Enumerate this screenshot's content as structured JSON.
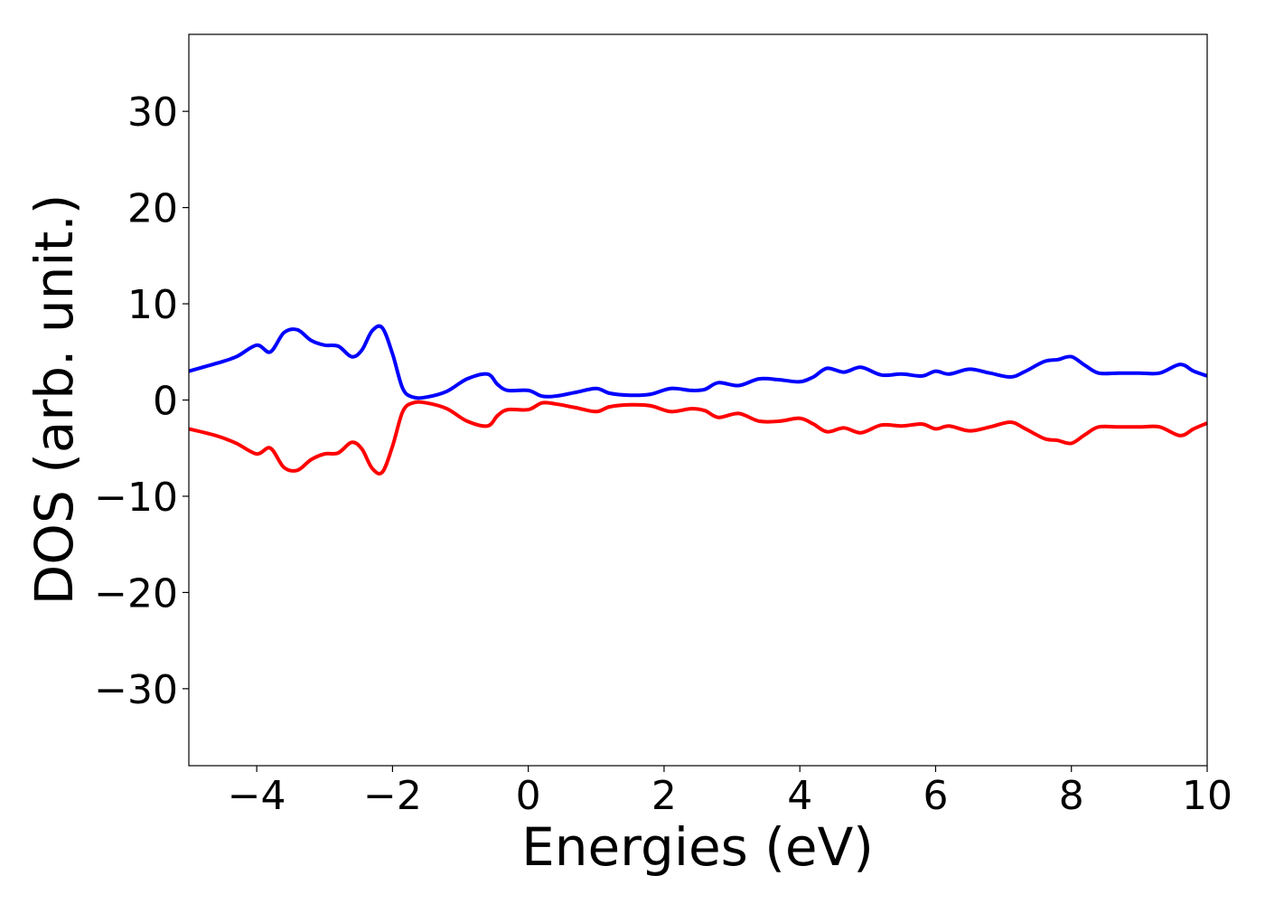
{
  "chart_data": {
    "type": "line",
    "title": "",
    "xlabel": "Energies (eV)",
    "ylabel": "DOS (arb. unit.)",
    "xlim": [
      -5,
      10
    ],
    "ylim": [
      -38,
      38
    ],
    "xticks": [
      -4,
      -2,
      0,
      2,
      4,
      6,
      8,
      10
    ],
    "xtick_labels": [
      "−4",
      "−2",
      "0",
      "2",
      "4",
      "6",
      "8",
      "10"
    ],
    "yticks": [
      30,
      20,
      10,
      0,
      -10,
      -20,
      -30
    ],
    "ytick_labels": [
      "30",
      "20",
      "10",
      "0",
      "−10",
      "−20",
      "−30"
    ],
    "grid": false,
    "legend": "none",
    "series": [
      {
        "color": "#0000ff",
        "x": [
          -5,
          -4.6,
          -4.3,
          -4.0,
          -3.8,
          -3.6,
          -3.4,
          -3.2,
          -3.0,
          -2.8,
          -2.6,
          -2.45,
          -2.3,
          -2.15,
          -2.0,
          -1.85,
          -1.7,
          -1.5,
          -1.2,
          -0.9,
          -0.6,
          -0.45,
          -0.3,
          0.0,
          0.2,
          0.4,
          0.7,
          1.0,
          1.2,
          1.5,
          1.8,
          2.1,
          2.4,
          2.6,
          2.8,
          3.1,
          3.4,
          3.7,
          4.0,
          4.2,
          4.4,
          4.65,
          4.9,
          5.2,
          5.5,
          5.8,
          6.0,
          6.2,
          6.5,
          6.8,
          7.1,
          7.3,
          7.6,
          7.8,
          8.0,
          8.2,
          8.4,
          8.7,
          9.0,
          9.3,
          9.6,
          9.8,
          10.0
        ],
        "values": [
          3.0,
          3.8,
          4.5,
          5.7,
          5.0,
          7.0,
          7.3,
          6.2,
          5.7,
          5.6,
          4.5,
          5.2,
          7.2,
          7.5,
          4.8,
          1.2,
          0.3,
          0.3,
          0.9,
          2.2,
          2.7,
          1.6,
          1.0,
          1.0,
          0.4,
          0.4,
          0.8,
          1.2,
          0.7,
          0.5,
          0.6,
          1.2,
          1.0,
          1.1,
          1.8,
          1.5,
          2.2,
          2.1,
          1.9,
          2.4,
          3.3,
          2.9,
          3.4,
          2.6,
          2.7,
          2.5,
          3.0,
          2.7,
          3.2,
          2.8,
          2.4,
          2.9,
          4.0,
          4.2,
          4.5,
          3.6,
          2.8,
          2.8,
          2.8,
          2.8,
          3.7,
          3.0,
          2.5
        ]
      },
      {
        "color": "#ff0000",
        "x": [
          -5,
          -4.6,
          -4.3,
          -4.0,
          -3.8,
          -3.6,
          -3.4,
          -3.2,
          -3.0,
          -2.8,
          -2.6,
          -2.45,
          -2.3,
          -2.15,
          -2.0,
          -1.85,
          -1.7,
          -1.5,
          -1.2,
          -0.9,
          -0.6,
          -0.45,
          -0.3,
          0.0,
          0.2,
          0.4,
          0.7,
          1.0,
          1.2,
          1.5,
          1.8,
          2.1,
          2.4,
          2.6,
          2.8,
          3.1,
          3.4,
          3.7,
          4.0,
          4.2,
          4.4,
          4.65,
          4.9,
          5.2,
          5.5,
          5.8,
          6.0,
          6.2,
          6.5,
          6.8,
          7.1,
          7.3,
          7.6,
          7.8,
          8.0,
          8.2,
          8.4,
          8.7,
          9.0,
          9.3,
          9.6,
          9.8,
          10.0
        ],
        "values": [
          -3.0,
          -3.7,
          -4.5,
          -5.6,
          -5.0,
          -7.0,
          -7.3,
          -6.2,
          -5.6,
          -5.5,
          -4.4,
          -5.1,
          -7.1,
          -7.5,
          -4.8,
          -1.2,
          -0.3,
          -0.3,
          -0.9,
          -2.2,
          -2.7,
          -1.6,
          -1.0,
          -1.0,
          -0.3,
          -0.4,
          -0.8,
          -1.2,
          -0.7,
          -0.5,
          -0.6,
          -1.2,
          -0.9,
          -1.1,
          -1.8,
          -1.4,
          -2.2,
          -2.2,
          -1.9,
          -2.5,
          -3.3,
          -2.9,
          -3.4,
          -2.6,
          -2.7,
          -2.5,
          -3.0,
          -2.7,
          -3.2,
          -2.8,
          -2.3,
          -2.9,
          -4.0,
          -4.2,
          -4.5,
          -3.6,
          -2.8,
          -2.8,
          -2.8,
          -2.8,
          -3.7,
          -3.0,
          -2.4
        ]
      }
    ]
  }
}
